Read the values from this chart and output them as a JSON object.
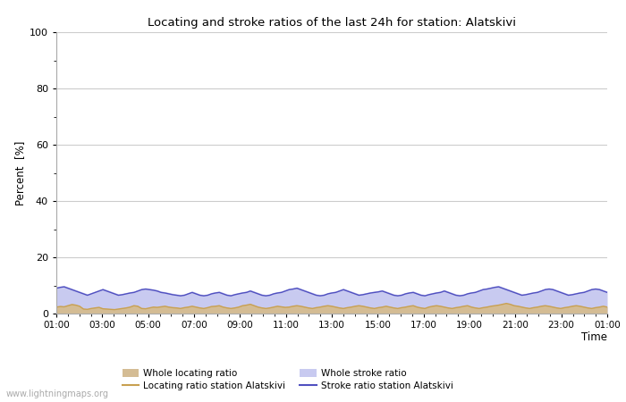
{
  "title": "Locating and stroke ratios of the last 24h for station: Alatskivi",
  "xlabel": "Time",
  "ylabel": "Percent  [%]",
  "ylim": [
    0,
    100
  ],
  "yticks": [
    0,
    20,
    40,
    60,
    80,
    100
  ],
  "yticks_minor": [
    10,
    30,
    50,
    70,
    90
  ],
  "xtick_labels": [
    "01:00",
    "03:00",
    "05:00",
    "07:00",
    "09:00",
    "11:00",
    "13:00",
    "15:00",
    "17:00",
    "19:00",
    "21:00",
    "23:00",
    "01:00"
  ],
  "watermark": "www.lightningmaps.org",
  "background_color": "#ffffff",
  "plot_bg_color": "#ffffff",
  "grid_color": "#cccccc",
  "whole_locating_fill_color": "#d4bc94",
  "whole_stroke_fill_color": "#c8caf0",
  "locating_line_color": "#c8a050",
  "stroke_line_color": "#5050c0",
  "whole_locating_ratio": [
    2.5,
    2.8,
    2.6,
    3.0,
    3.5,
    3.2,
    2.8,
    1.8,
    1.7,
    2.0,
    2.2,
    2.4,
    1.9,
    1.8,
    1.7,
    1.6,
    1.8,
    2.0,
    2.2,
    2.5,
    3.0,
    2.8,
    2.0,
    1.9,
    2.2,
    2.5,
    2.4,
    2.6,
    2.8,
    2.5,
    2.3,
    2.2,
    2.0,
    2.3,
    2.5,
    2.8,
    2.5,
    2.2,
    2.0,
    2.3,
    2.7,
    2.8,
    3.0,
    2.5,
    2.2,
    2.0,
    2.2,
    2.5,
    3.0,
    3.2,
    3.5,
    3.0,
    2.5,
    2.2,
    2.0,
    2.2,
    2.5,
    2.8,
    2.6,
    2.4,
    2.5,
    2.8,
    3.0,
    2.8,
    2.5,
    2.2,
    2.0,
    2.3,
    2.5,
    2.8,
    3.0,
    2.8,
    2.5,
    2.2,
    2.0,
    2.3,
    2.5,
    2.8,
    3.0,
    2.8,
    2.5,
    2.2,
    2.0,
    2.3,
    2.5,
    2.8,
    2.5,
    2.2,
    2.0,
    2.3,
    2.5,
    2.8,
    3.0,
    2.5,
    2.2,
    2.0,
    2.5,
    2.8,
    3.0,
    2.8,
    2.5,
    2.2,
    2.0,
    2.3,
    2.5,
    2.8,
    3.0,
    2.5,
    2.2,
    2.0,
    2.3,
    2.5,
    2.8,
    3.0,
    3.2,
    3.5,
    3.8,
    3.5,
    3.0,
    2.8,
    2.5,
    2.2,
    2.0,
    2.3,
    2.5,
    2.8,
    3.0,
    2.8,
    2.5,
    2.2,
    2.0,
    2.3,
    2.5,
    2.8,
    3.0,
    2.8,
    2.5,
    2.2,
    2.0,
    2.3,
    2.5,
    2.8,
    2.5
  ],
  "whole_stroke_ratio": [
    9.5,
    9.8,
    10.0,
    9.5,
    9.0,
    8.5,
    8.0,
    7.5,
    7.0,
    7.5,
    8.0,
    8.5,
    9.0,
    8.5,
    8.0,
    7.5,
    7.0,
    7.2,
    7.5,
    7.8,
    8.0,
    8.5,
    9.0,
    9.2,
    9.0,
    8.8,
    8.5,
    8.0,
    7.8,
    7.5,
    7.2,
    7.0,
    6.8,
    7.0,
    7.5,
    8.0,
    7.5,
    7.0,
    6.8,
    7.0,
    7.5,
    7.8,
    8.0,
    7.5,
    7.0,
    6.8,
    7.2,
    7.5,
    7.8,
    8.0,
    8.5,
    8.0,
    7.5,
    7.0,
    6.8,
    7.0,
    7.5,
    7.8,
    8.0,
    8.5,
    9.0,
    9.2,
    9.5,
    9.0,
    8.5,
    8.0,
    7.5,
    7.0,
    6.8,
    7.0,
    7.5,
    7.8,
    8.0,
    8.5,
    9.0,
    8.5,
    8.0,
    7.5,
    7.0,
    7.2,
    7.5,
    7.8,
    8.0,
    8.2,
    8.5,
    8.0,
    7.5,
    7.0,
    6.8,
    7.0,
    7.5,
    7.8,
    8.0,
    7.5,
    7.0,
    6.8,
    7.2,
    7.5,
    7.8,
    8.0,
    8.5,
    8.0,
    7.5,
    7.0,
    6.8,
    7.0,
    7.5,
    7.8,
    8.0,
    8.5,
    9.0,
    9.2,
    9.5,
    9.8,
    10.0,
    9.5,
    9.0,
    8.5,
    8.0,
    7.5,
    7.0,
    7.2,
    7.5,
    7.8,
    8.0,
    8.5,
    9.0,
    9.2,
    9.0,
    8.5,
    8.0,
    7.5,
    7.0,
    7.2,
    7.5,
    7.8,
    8.0,
    8.5,
    9.0,
    9.2,
    9.0,
    8.5,
    8.0
  ],
  "locating_ratio_station": [
    2.3,
    2.5,
    2.4,
    2.8,
    3.2,
    3.0,
    2.6,
    1.6,
    1.5,
    1.8,
    2.0,
    2.2,
    1.7,
    1.6,
    1.5,
    1.4,
    1.6,
    1.8,
    2.0,
    2.3,
    2.8,
    2.6,
    1.8,
    1.7,
    2.0,
    2.3,
    2.2,
    2.4,
    2.6,
    2.3,
    2.1,
    2.0,
    1.8,
    2.1,
    2.3,
    2.6,
    2.3,
    2.0,
    1.8,
    2.1,
    2.5,
    2.6,
    2.8,
    2.3,
    2.0,
    1.8,
    2.0,
    2.3,
    2.8,
    3.0,
    3.3,
    2.8,
    2.3,
    2.0,
    1.8,
    2.0,
    2.3,
    2.6,
    2.4,
    2.2,
    2.3,
    2.6,
    2.8,
    2.6,
    2.3,
    2.0,
    1.8,
    2.1,
    2.3,
    2.6,
    2.8,
    2.6,
    2.3,
    2.0,
    1.8,
    2.1,
    2.3,
    2.6,
    2.8,
    2.6,
    2.3,
    2.0,
    1.8,
    2.1,
    2.3,
    2.6,
    2.3,
    2.0,
    1.8,
    2.1,
    2.3,
    2.6,
    2.8,
    2.3,
    2.0,
    1.8,
    2.3,
    2.6,
    2.8,
    2.6,
    2.3,
    2.0,
    1.8,
    2.1,
    2.3,
    2.6,
    2.8,
    2.3,
    2.0,
    1.8,
    2.1,
    2.3,
    2.6,
    2.8,
    3.0,
    3.3,
    3.6,
    3.3,
    2.8,
    2.6,
    2.3,
    2.0,
    1.8,
    2.1,
    2.3,
    2.6,
    2.8,
    2.6,
    2.3,
    2.0,
    1.8,
    2.1,
    2.3,
    2.6,
    2.8,
    2.6,
    2.3,
    2.0,
    1.8,
    2.1,
    2.3,
    2.6,
    2.3
  ],
  "stroke_ratio_station": [
    9.0,
    9.3,
    9.5,
    9.0,
    8.5,
    8.0,
    7.5,
    7.0,
    6.5,
    7.0,
    7.5,
    8.0,
    8.5,
    8.0,
    7.5,
    7.0,
    6.5,
    6.7,
    7.0,
    7.3,
    7.5,
    8.0,
    8.5,
    8.7,
    8.5,
    8.3,
    8.0,
    7.5,
    7.3,
    7.0,
    6.7,
    6.5,
    6.3,
    6.5,
    7.0,
    7.5,
    7.0,
    6.5,
    6.3,
    6.5,
    7.0,
    7.3,
    7.5,
    7.0,
    6.5,
    6.3,
    6.7,
    7.0,
    7.3,
    7.5,
    8.0,
    7.5,
    7.0,
    6.5,
    6.3,
    6.5,
    7.0,
    7.3,
    7.5,
    8.0,
    8.5,
    8.7,
    9.0,
    8.5,
    8.0,
    7.5,
    7.0,
    6.5,
    6.3,
    6.5,
    7.0,
    7.3,
    7.5,
    8.0,
    8.5,
    8.0,
    7.5,
    7.0,
    6.5,
    6.7,
    7.0,
    7.3,
    7.5,
    7.7,
    8.0,
    7.5,
    7.0,
    6.5,
    6.3,
    6.5,
    7.0,
    7.3,
    7.5,
    7.0,
    6.5,
    6.3,
    6.7,
    7.0,
    7.3,
    7.5,
    8.0,
    7.5,
    7.0,
    6.5,
    6.3,
    6.5,
    7.0,
    7.3,
    7.5,
    8.0,
    8.5,
    8.7,
    9.0,
    9.3,
    9.5,
    9.0,
    8.5,
    8.0,
    7.5,
    7.0,
    6.5,
    6.7,
    7.0,
    7.3,
    7.5,
    8.0,
    8.5,
    8.7,
    8.5,
    8.0,
    7.5,
    7.0,
    6.5,
    6.7,
    7.0,
    7.3,
    7.5,
    8.0,
    8.5,
    8.7,
    8.5,
    8.0,
    7.5
  ]
}
